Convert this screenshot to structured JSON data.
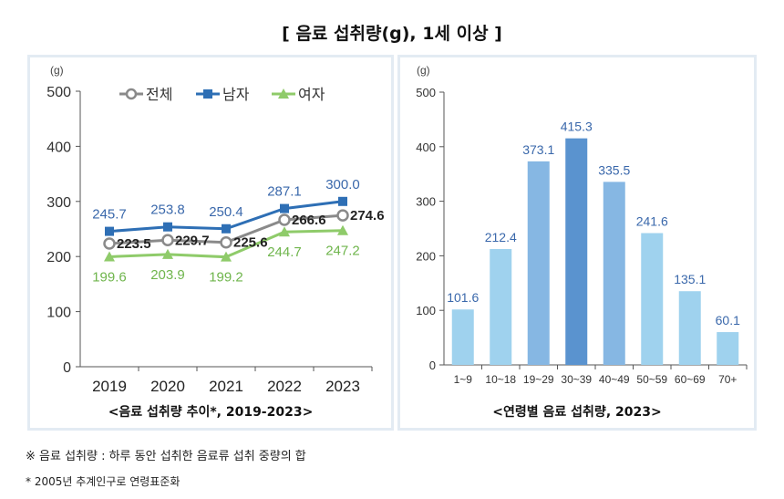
{
  "title": "[ 음료 섭취량(g), 1세 이상 ]",
  "colors": {
    "total": "#8a8a8a",
    "male": "#2e6fb5",
    "female": "#8fcb6a",
    "bar_light": "#9fd2ee",
    "bar_mid": "#86b7e3",
    "bar_dark": "#5a93cf",
    "label_blue": "#3a68ab",
    "label_green": "#6fb54c"
  },
  "chart_data": [
    {
      "type": "line",
      "title": "<음료 섭취량 추이*, 2019-2023>",
      "ylabel": "(g)",
      "xlabel": "",
      "ylim": [
        0,
        500
      ],
      "yticks": [
        0,
        100,
        200,
        300,
        400,
        500
      ],
      "categories": [
        "2019",
        "2020",
        "2021",
        "2022",
        "2023"
      ],
      "legend": [
        "전체",
        "남자",
        "여자"
      ],
      "legend_position": "top",
      "series": [
        {
          "name": "남자",
          "values": [
            245.7,
            253.8,
            250.4,
            287.1,
            300.0
          ],
          "labels": [
            "245.7",
            "253.8",
            "250.4",
            "287.1",
            "300.0"
          ]
        },
        {
          "name": "전체",
          "values": [
            223.5,
            229.7,
            225.6,
            266.6,
            274.6
          ],
          "labels": [
            "223.5",
            "229.7",
            "225.6",
            "266.6",
            "274.6"
          ]
        },
        {
          "name": "여자",
          "values": [
            199.6,
            203.9,
            199.2,
            244.7,
            247.2
          ],
          "labels": [
            "199.6",
            "203.9",
            "199.2",
            "244.7",
            "247.2"
          ]
        }
      ]
    },
    {
      "type": "bar",
      "title": "<연령별 음료 섭취량, 2023>",
      "ylabel": "(g)",
      "xlabel": "",
      "ylim": [
        0,
        500
      ],
      "yticks": [
        0,
        100,
        200,
        300,
        400,
        500
      ],
      "categories": [
        "1~9",
        "10~18",
        "19~29",
        "30~39",
        "40~49",
        "50~59",
        "60~69",
        "70+"
      ],
      "values": [
        101.6,
        212.4,
        373.1,
        415.3,
        335.5,
        241.6,
        135.1,
        60.1
      ],
      "labels": [
        "101.6",
        "212.4",
        "373.1",
        "415.3",
        "335.5",
        "241.6",
        "135.1",
        "60.1"
      ]
    }
  ],
  "notes": {
    "note1": "※  음료 섭취량 : 하루 동안 섭취한 음료류 섭취 중량의 합",
    "note2": "* 2005년 추계인구로 연령표준화"
  }
}
